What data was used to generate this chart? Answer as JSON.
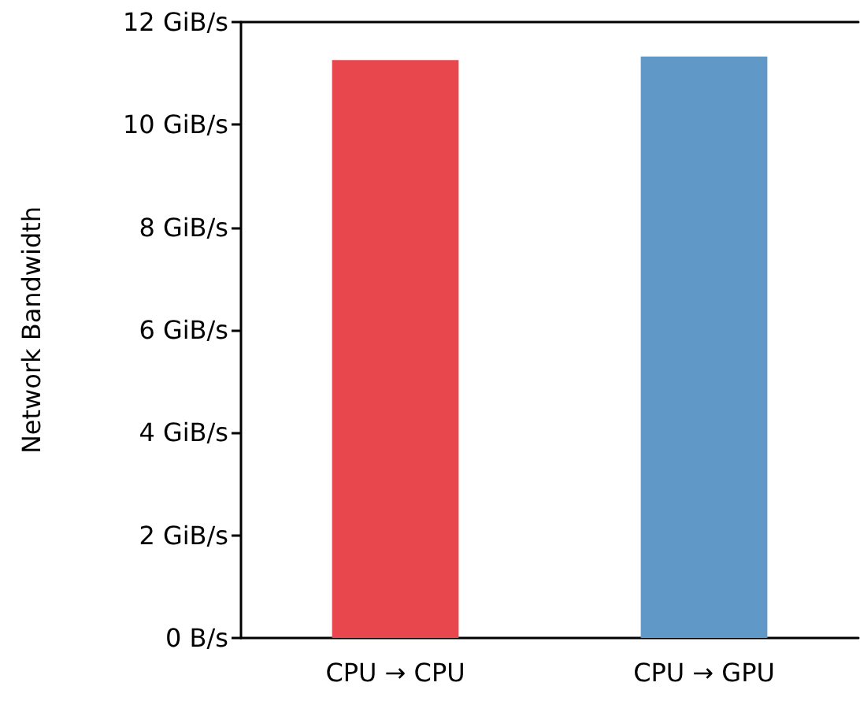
{
  "chart_data": {
    "type": "bar",
    "ylabel": "Network Bandwidth",
    "categories": [
      "CPU → CPU",
      "CPU → GPU"
    ],
    "values": [
      11.26,
      11.33
    ],
    "colors": [
      "#e8484d",
      "#6098c8"
    ],
    "ylim": [
      0,
      12
    ],
    "yticks": [
      {
        "value": 0,
        "label": "0 B/s"
      },
      {
        "value": 2,
        "label": "2 GiB/s"
      },
      {
        "value": 4,
        "label": "4 GiB/s"
      },
      {
        "value": 6,
        "label": "6 GiB/s"
      },
      {
        "value": 8,
        "label": "8 GiB/s"
      },
      {
        "value": 10,
        "label": "10 GiB/s"
      },
      {
        "value": 12,
        "label": "12 GiB/s"
      }
    ]
  }
}
